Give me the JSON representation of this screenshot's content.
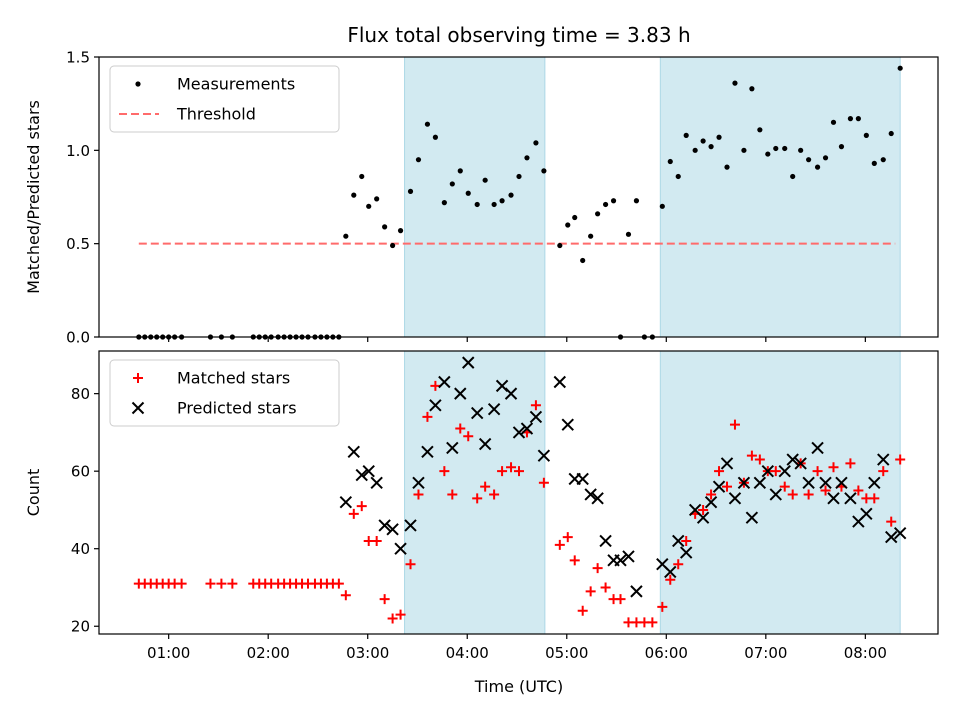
{
  "title": "Flux total observing time = 3.83 h",
  "xlabel": "Time (UTC)",
  "colors": {
    "shade": "#add8e6",
    "measure": "#000000",
    "threshold": "#ff6b6b",
    "matched": "#ff0000",
    "predicted": "#000000"
  },
  "chart_data": [
    {
      "type": "scatter",
      "panel": "top",
      "ylabel": "Matched/Predicted stars",
      "xlim": [
        0.3,
        8.73
      ],
      "ylim": [
        0,
        1.5
      ],
      "xticks": [
        [
          1,
          "01:00"
        ],
        [
          2,
          "02:00"
        ],
        [
          3,
          "03:00"
        ],
        [
          4,
          "04:00"
        ],
        [
          5,
          "05:00"
        ],
        [
          6,
          "06:00"
        ],
        [
          7,
          "07:00"
        ],
        [
          8,
          "08:00"
        ]
      ],
      "yticks": [
        [
          0,
          "0.0"
        ],
        [
          0.5,
          "0.5"
        ],
        [
          1.0,
          "1.0"
        ],
        [
          1.5,
          "1.5"
        ]
      ],
      "shaded_intervals": [
        [
          3.37,
          4.78
        ],
        [
          5.94,
          8.35
        ]
      ],
      "legend": "upper left",
      "legend_entries": [
        "Measurements",
        "Threshold"
      ],
      "threshold": {
        "name": "Threshold",
        "x": [
          0.7,
          8.3
        ],
        "y": 0.5,
        "style": "dashed"
      },
      "series": [
        {
          "name": "Measurements",
          "points": [
            [
              0.7,
              0.0
            ],
            [
              0.76,
              0.0
            ],
            [
              0.82,
              0.0
            ],
            [
              0.88,
              0.0
            ],
            [
              0.94,
              0.0
            ],
            [
              1.0,
              0.0
            ],
            [
              1.06,
              0.0
            ],
            [
              1.13,
              0.0
            ],
            [
              1.42,
              0.0
            ],
            [
              1.53,
              0.0
            ],
            [
              1.64,
              0.0
            ],
            [
              1.85,
              0.0
            ],
            [
              1.91,
              0.0
            ],
            [
              1.97,
              0.0
            ],
            [
              2.03,
              0.0
            ],
            [
              2.1,
              0.0
            ],
            [
              2.16,
              0.0
            ],
            [
              2.22,
              0.0
            ],
            [
              2.28,
              0.0
            ],
            [
              2.34,
              0.0
            ],
            [
              2.4,
              0.0
            ],
            [
              2.47,
              0.0
            ],
            [
              2.53,
              0.0
            ],
            [
              2.59,
              0.0
            ],
            [
              2.65,
              0.0
            ],
            [
              2.71,
              0.0
            ],
            [
              2.78,
              0.54
            ],
            [
              2.86,
              0.76
            ],
            [
              2.94,
              0.86
            ],
            [
              3.01,
              0.7
            ],
            [
              3.09,
              0.74
            ],
            [
              3.17,
              0.59
            ],
            [
              3.25,
              0.49
            ],
            [
              3.33,
              0.57
            ],
            [
              3.43,
              0.78
            ],
            [
              3.51,
              0.95
            ],
            [
              3.6,
              1.14
            ],
            [
              3.68,
              1.07
            ],
            [
              3.77,
              0.72
            ],
            [
              3.85,
              0.82
            ],
            [
              3.93,
              0.89
            ],
            [
              4.01,
              0.77
            ],
            [
              4.1,
              0.71
            ],
            [
              4.18,
              0.84
            ],
            [
              4.27,
              0.71
            ],
            [
              4.35,
              0.73
            ],
            [
              4.44,
              0.76
            ],
            [
              4.52,
              0.86
            ],
            [
              4.6,
              0.96
            ],
            [
              4.69,
              1.04
            ],
            [
              4.77,
              0.89
            ],
            [
              4.93,
              0.49
            ],
            [
              5.01,
              0.6
            ],
            [
              5.08,
              0.64
            ],
            [
              5.16,
              0.41
            ],
            [
              5.24,
              0.54
            ],
            [
              5.31,
              0.66
            ],
            [
              5.39,
              0.71
            ],
            [
              5.47,
              0.73
            ],
            [
              5.54,
              0.0
            ],
            [
              5.62,
              0.55
            ],
            [
              5.7,
              0.73
            ],
            [
              5.78,
              0.0
            ],
            [
              5.86,
              0.0
            ],
            [
              5.96,
              0.7
            ],
            [
              6.04,
              0.94
            ],
            [
              6.12,
              0.86
            ],
            [
              6.2,
              1.08
            ],
            [
              6.29,
              1.0
            ],
            [
              6.37,
              1.05
            ],
            [
              6.45,
              1.02
            ],
            [
              6.53,
              1.07
            ],
            [
              6.61,
              0.91
            ],
            [
              6.69,
              1.36
            ],
            [
              6.78,
              1.0
            ],
            [
              6.86,
              1.33
            ],
            [
              6.94,
              1.11
            ],
            [
              7.02,
              0.98
            ],
            [
              7.1,
              1.01
            ],
            [
              7.19,
              1.01
            ],
            [
              7.27,
              0.86
            ],
            [
              7.35,
              1.0
            ],
            [
              7.43,
              0.95
            ],
            [
              7.52,
              0.91
            ],
            [
              7.6,
              0.96
            ],
            [
              7.68,
              1.15
            ],
            [
              7.76,
              1.02
            ],
            [
              7.85,
              1.17
            ],
            [
              7.93,
              1.17
            ],
            [
              8.01,
              1.08
            ],
            [
              8.09,
              0.93
            ],
            [
              8.18,
              0.95
            ],
            [
              8.26,
              1.09
            ],
            [
              8.35,
              1.44
            ]
          ]
        }
      ]
    },
    {
      "type": "scatter",
      "panel": "bottom",
      "ylabel": "Count",
      "xlim": [
        0.3,
        8.73
      ],
      "ylim": [
        18,
        91
      ],
      "xticks": [
        [
          1,
          "01:00"
        ],
        [
          2,
          "02:00"
        ],
        [
          3,
          "03:00"
        ],
        [
          4,
          "04:00"
        ],
        [
          5,
          "05:00"
        ],
        [
          6,
          "06:00"
        ],
        [
          7,
          "07:00"
        ],
        [
          8,
          "08:00"
        ]
      ],
      "yticks": [
        [
          20,
          "20"
        ],
        [
          40,
          "40"
        ],
        [
          60,
          "60"
        ],
        [
          80,
          "80"
        ]
      ],
      "shaded_intervals": [
        [
          3.37,
          4.78
        ],
        [
          5.94,
          8.35
        ]
      ],
      "legend": "upper left",
      "legend_entries": [
        "Matched stars",
        "Predicted stars"
      ],
      "series": [
        {
          "name": "Matched stars",
          "marker": "+",
          "points": [
            [
              0.7,
              31
            ],
            [
              0.76,
              31
            ],
            [
              0.82,
              31
            ],
            [
              0.88,
              31
            ],
            [
              0.94,
              31
            ],
            [
              1.0,
              31
            ],
            [
              1.06,
              31
            ],
            [
              1.13,
              31
            ],
            [
              1.42,
              31
            ],
            [
              1.53,
              31
            ],
            [
              1.64,
              31
            ],
            [
              1.85,
              31
            ],
            [
              1.91,
              31
            ],
            [
              1.97,
              31
            ],
            [
              2.03,
              31
            ],
            [
              2.1,
              31
            ],
            [
              2.16,
              31
            ],
            [
              2.22,
              31
            ],
            [
              2.28,
              31
            ],
            [
              2.34,
              31
            ],
            [
              2.4,
              31
            ],
            [
              2.47,
              31
            ],
            [
              2.53,
              31
            ],
            [
              2.59,
              31
            ],
            [
              2.65,
              31
            ],
            [
              2.71,
              31
            ],
            [
              2.78,
              28
            ],
            [
              2.86,
              49
            ],
            [
              2.94,
              51
            ],
            [
              3.01,
              42
            ],
            [
              3.09,
              42
            ],
            [
              3.17,
              27
            ],
            [
              3.25,
              22
            ],
            [
              3.33,
              23
            ],
            [
              3.43,
              36
            ],
            [
              3.51,
              54
            ],
            [
              3.6,
              74
            ],
            [
              3.68,
              82
            ],
            [
              3.77,
              60
            ],
            [
              3.85,
              54
            ],
            [
              3.93,
              71
            ],
            [
              4.01,
              69
            ],
            [
              4.1,
              53
            ],
            [
              4.18,
              56
            ],
            [
              4.27,
              54
            ],
            [
              4.35,
              60
            ],
            [
              4.44,
              61
            ],
            [
              4.52,
              60
            ],
            [
              4.6,
              70
            ],
            [
              4.69,
              77
            ],
            [
              4.77,
              57
            ],
            [
              4.93,
              41
            ],
            [
              5.01,
              43
            ],
            [
              5.08,
              37
            ],
            [
              5.16,
              24
            ],
            [
              5.24,
              29
            ],
            [
              5.31,
              35
            ],
            [
              5.39,
              30
            ],
            [
              5.47,
              27
            ],
            [
              5.54,
              27
            ],
            [
              5.62,
              21
            ],
            [
              5.7,
              21
            ],
            [
              5.78,
              21
            ],
            [
              5.86,
              21
            ],
            [
              5.96,
              25
            ],
            [
              6.04,
              32
            ],
            [
              6.12,
              36
            ],
            [
              6.2,
              42
            ],
            [
              6.29,
              49
            ],
            [
              6.37,
              50
            ],
            [
              6.45,
              54
            ],
            [
              6.53,
              60
            ],
            [
              6.61,
              56
            ],
            [
              6.69,
              72
            ],
            [
              6.78,
              57
            ],
            [
              6.86,
              64
            ],
            [
              6.94,
              63
            ],
            [
              7.02,
              60
            ],
            [
              7.1,
              60
            ],
            [
              7.19,
              56
            ],
            [
              7.27,
              54
            ],
            [
              7.35,
              62
            ],
            [
              7.43,
              54
            ],
            [
              7.52,
              60
            ],
            [
              7.6,
              55
            ],
            [
              7.68,
              61
            ],
            [
              7.76,
              56
            ],
            [
              7.85,
              62
            ],
            [
              7.93,
              55
            ],
            [
              8.01,
              53
            ],
            [
              8.09,
              53
            ],
            [
              8.18,
              60
            ],
            [
              8.26,
              47
            ],
            [
              8.35,
              63
            ]
          ]
        },
        {
          "name": "Predicted stars",
          "marker": "x",
          "points": [
            [
              2.78,
              52
            ],
            [
              2.86,
              65
            ],
            [
              2.94,
              59
            ],
            [
              3.01,
              60
            ],
            [
              3.09,
              57
            ],
            [
              3.17,
              46
            ],
            [
              3.25,
              45
            ],
            [
              3.33,
              40
            ],
            [
              3.43,
              46
            ],
            [
              3.51,
              57
            ],
            [
              3.6,
              65
            ],
            [
              3.68,
              77
            ],
            [
              3.77,
              83
            ],
            [
              3.85,
              66
            ],
            [
              3.93,
              80
            ],
            [
              4.01,
              88
            ],
            [
              4.1,
              75
            ],
            [
              4.18,
              67
            ],
            [
              4.27,
              76
            ],
            [
              4.35,
              82
            ],
            [
              4.44,
              80
            ],
            [
              4.52,
              70
            ],
            [
              4.6,
              71
            ],
            [
              4.69,
              74
            ],
            [
              4.77,
              64
            ],
            [
              4.93,
              83
            ],
            [
              5.01,
              72
            ],
            [
              5.08,
              58
            ],
            [
              5.16,
              58
            ],
            [
              5.24,
              54
            ],
            [
              5.31,
              53
            ],
            [
              5.39,
              42
            ],
            [
              5.47,
              37
            ],
            [
              5.54,
              37
            ],
            [
              5.62,
              38
            ],
            [
              5.7,
              29
            ],
            [
              5.96,
              36
            ],
            [
              6.04,
              34
            ],
            [
              6.12,
              42
            ],
            [
              6.2,
              39
            ],
            [
              6.29,
              50
            ],
            [
              6.37,
              48
            ],
            [
              6.45,
              52
            ],
            [
              6.53,
              56
            ],
            [
              6.61,
              62
            ],
            [
              6.69,
              53
            ],
            [
              6.78,
              57
            ],
            [
              6.86,
              48
            ],
            [
              6.94,
              57
            ],
            [
              7.02,
              60
            ],
            [
              7.1,
              54
            ],
            [
              7.19,
              60
            ],
            [
              7.27,
              63
            ],
            [
              7.35,
              62
            ],
            [
              7.43,
              57
            ],
            [
              7.52,
              66
            ],
            [
              7.6,
              57
            ],
            [
              7.68,
              53
            ],
            [
              7.76,
              57
            ],
            [
              7.85,
              53
            ],
            [
              7.93,
              47
            ],
            [
              8.01,
              49
            ],
            [
              8.09,
              57
            ],
            [
              8.18,
              63
            ],
            [
              8.26,
              43
            ],
            [
              8.35,
              44
            ]
          ]
        }
      ]
    }
  ]
}
